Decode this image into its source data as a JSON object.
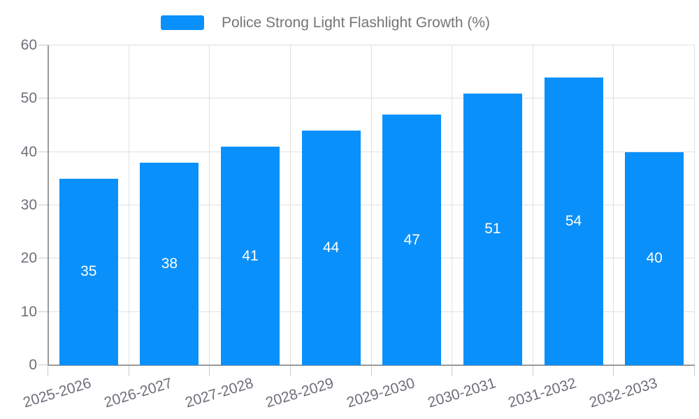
{
  "chart_data": {
    "type": "bar",
    "title": "Police Strong Light Flashlight Growth (%)",
    "categories": [
      "2025-2026",
      "2026-2027",
      "2027-2028",
      "2028-2029",
      "2029-2030",
      "2030-2031",
      "2031-2032",
      "2032-2033"
    ],
    "values": [
      35,
      38,
      41,
      44,
      47,
      51,
      54,
      40
    ],
    "xlabel": "",
    "ylabel": "",
    "ylim": [
      0,
      60
    ],
    "yticks": [
      0,
      10,
      20,
      30,
      40,
      50,
      60
    ],
    "grid": true,
    "legend_position": "top-center",
    "bar_labels_inside": true,
    "colors": {
      "bar": "#0A90FA",
      "gridline": "#E0E0E0",
      "axis_line": "#999999",
      "tick": "#C9C9C9",
      "axis_text": "#6E7079",
      "legend_text": "#757575",
      "value_label": "#FFFFFF"
    }
  }
}
